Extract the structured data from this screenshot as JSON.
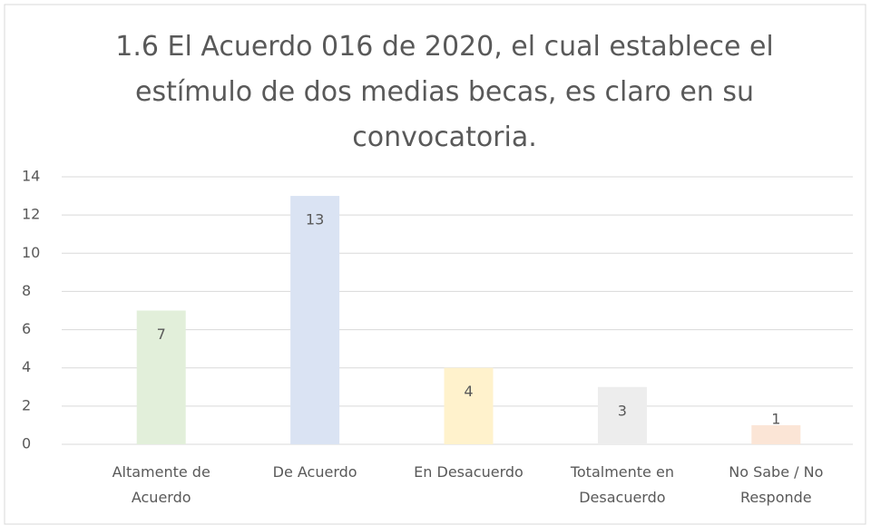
{
  "chart_data": {
    "type": "bar",
    "title": "1.6  El Acuerdo 016 de 2020, el cual establece el estímulo de dos medias becas, es claro en su convocatoria.",
    "categories": [
      "Altamente de Acuerdo",
      "De Acuerdo",
      "En Desacuerdo",
      "Totalmente en Desacuerdo",
      "No Sabe / No Responde"
    ],
    "values": [
      7,
      13,
      4,
      3,
      1
    ],
    "colors": [
      "#e2efda",
      "#dae3f3",
      "#fff2cc",
      "#ededed",
      "#fbe5d6"
    ],
    "ylim": [
      0,
      14
    ],
    "yticks": [
      0,
      2,
      4,
      6,
      8,
      10,
      12,
      14
    ],
    "grid": true
  }
}
